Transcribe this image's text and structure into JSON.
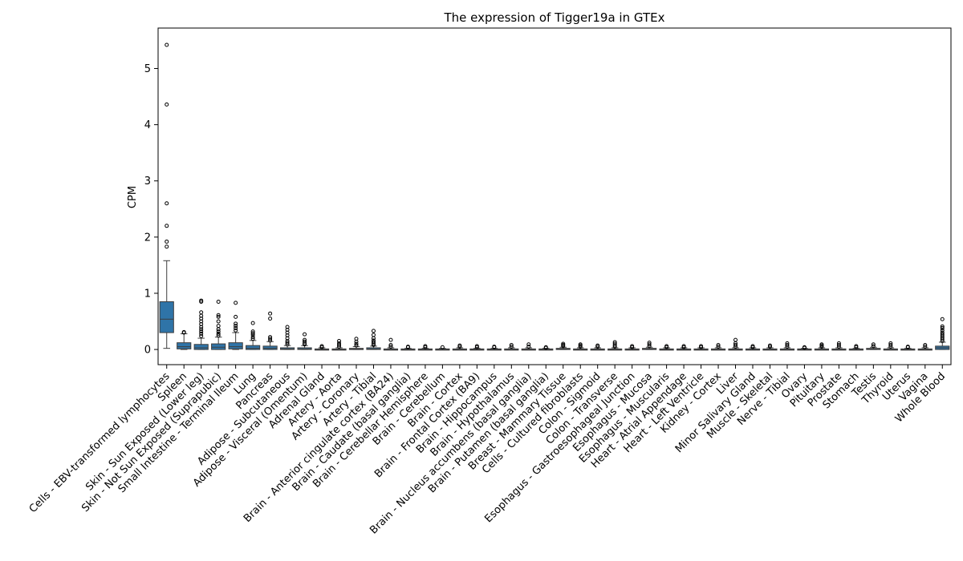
{
  "chart_data": {
    "type": "box",
    "title": "The expression of Tigger19a in GTEx",
    "xlabel": "",
    "ylabel": "CPM",
    "ylim": [
      -0.27,
      5.72
    ],
    "yticks": [
      0,
      1,
      2,
      3,
      4,
      5
    ],
    "box_color": "#2f74a8",
    "grid": false,
    "categories": [
      "Cells - EBV-transformed lymphocytes",
      "Spleen",
      "Skin - Sun Exposed (Lower leg)",
      "Skin - Not Sun Exposed (Suprapubic)",
      "Small Intestine - Terminal Ileum",
      "Lung",
      "Pancreas",
      "Adipose - Subcutaneous",
      "Adipose - Visceral (Omentum)",
      "Adrenal Gland",
      "Artery - Aorta",
      "Artery - Coronary",
      "Artery - Tibial",
      "Brain - Anterior cingulate cortex (BA24)",
      "Brain - Caudate (basal ganglia)",
      "Brain - Cerebellar Hemisphere",
      "Brain - Cerebellum",
      "Brain - Cortex",
      "Brain - Frontal Cortex (BA9)",
      "Brain - Hippocampus",
      "Brain - Hypothalamus",
      "Brain - Nucleus accumbens (basal ganglia)",
      "Brain - Putamen (basal ganglia)",
      "Breast - Mammary Tissue",
      "Cells - Cultured fibroblasts",
      "Colon - Sigmoid",
      "Colon - Transverse",
      "Esophagus - Gastroesophageal Junction",
      "Esophagus - Mucosa",
      "Esophagus - Muscularis",
      "Heart - Atrial Appendage",
      "Heart - Left Ventricle",
      "Kidney - Cortex",
      "Liver",
      "Minor Salivary Gland",
      "Muscle - Skeletal",
      "Nerve - Tibial",
      "Ovary",
      "Pituitary",
      "Prostate",
      "Stomach",
      "Testis",
      "Thyroid",
      "Uterus",
      "Vagina",
      "Whole Blood"
    ],
    "boxes": [
      {
        "whislo": 0.02,
        "q1": 0.3,
        "med": 0.54,
        "q3": 0.85,
        "whishi": 1.58,
        "fliers": [
          1.83,
          1.92,
          2.2,
          2.6,
          4.36,
          5.42
        ]
      },
      {
        "whislo": 0.0,
        "q1": 0.01,
        "med": 0.05,
        "q3": 0.12,
        "whishi": 0.28,
        "fliers": [
          0.31,
          0.3
        ]
      },
      {
        "whislo": 0.0,
        "q1": 0.0,
        "med": 0.03,
        "q3": 0.09,
        "whishi": 0.2,
        "fliers": [
          0.24,
          0.28,
          0.32,
          0.36,
          0.4,
          0.45,
          0.5,
          0.55,
          0.6,
          0.66,
          0.85,
          0.87
        ]
      },
      {
        "whislo": 0.0,
        "q1": 0.0,
        "med": 0.04,
        "q3": 0.1,
        "whishi": 0.22,
        "fliers": [
          0.25,
          0.28,
          0.32,
          0.36,
          0.42,
          0.5,
          0.58,
          0.61,
          0.85
        ]
      },
      {
        "whislo": 0.0,
        "q1": 0.01,
        "med": 0.05,
        "q3": 0.12,
        "whishi": 0.3,
        "fliers": [
          0.34,
          0.38,
          0.42,
          0.46,
          0.58,
          0.83
        ]
      },
      {
        "whislo": 0.0,
        "q1": 0.0,
        "med": 0.02,
        "q3": 0.07,
        "whishi": 0.16,
        "fliers": [
          0.19,
          0.22,
          0.26,
          0.29,
          0.32,
          0.47
        ]
      },
      {
        "whislo": 0.0,
        "q1": 0.0,
        "med": 0.02,
        "q3": 0.06,
        "whishi": 0.14,
        "fliers": [
          0.16,
          0.19,
          0.22,
          0.55,
          0.64
        ]
      },
      {
        "whislo": 0.0,
        "q1": 0.0,
        "med": 0.01,
        "q3": 0.03,
        "whishi": 0.07,
        "fliers": [
          0.09,
          0.12,
          0.15,
          0.2,
          0.25,
          0.3,
          0.35,
          0.4
        ]
      },
      {
        "whislo": 0.0,
        "q1": 0.0,
        "med": 0.01,
        "q3": 0.03,
        "whishi": 0.07,
        "fliers": [
          0.09,
          0.11,
          0.14,
          0.17,
          0.27
        ]
      },
      {
        "whislo": 0.0,
        "q1": 0.0,
        "med": 0.0,
        "q3": 0.01,
        "whishi": 0.03,
        "fliers": [
          0.04,
          0.06
        ]
      },
      {
        "whislo": 0.0,
        "q1": 0.0,
        "med": 0.0,
        "q3": 0.01,
        "whishi": 0.03,
        "fliers": [
          0.05,
          0.08,
          0.11,
          0.15
        ]
      },
      {
        "whislo": 0.0,
        "q1": 0.0,
        "med": 0.01,
        "q3": 0.02,
        "whishi": 0.05,
        "fliers": [
          0.07,
          0.1,
          0.14,
          0.19
        ]
      },
      {
        "whislo": 0.0,
        "q1": 0.0,
        "med": 0.01,
        "q3": 0.03,
        "whishi": 0.06,
        "fliers": [
          0.08,
          0.1,
          0.13,
          0.16,
          0.2,
          0.26,
          0.33
        ]
      },
      {
        "whislo": 0.0,
        "q1": 0.0,
        "med": 0.0,
        "q3": 0.01,
        "whishi": 0.03,
        "fliers": [
          0.05,
          0.08,
          0.17
        ]
      },
      {
        "whislo": 0.0,
        "q1": 0.0,
        "med": 0.0,
        "q3": 0.01,
        "whishi": 0.02,
        "fliers": [
          0.04,
          0.05
        ]
      },
      {
        "whislo": 0.0,
        "q1": 0.0,
        "med": 0.0,
        "q3": 0.01,
        "whishi": 0.02,
        "fliers": [
          0.04,
          0.06
        ]
      },
      {
        "whislo": 0.0,
        "q1": 0.0,
        "med": 0.0,
        "q3": 0.01,
        "whishi": 0.02,
        "fliers": [
          0.04
        ]
      },
      {
        "whislo": 0.0,
        "q1": 0.0,
        "med": 0.0,
        "q3": 0.01,
        "whishi": 0.03,
        "fliers": [
          0.05,
          0.07
        ]
      },
      {
        "whislo": 0.0,
        "q1": 0.0,
        "med": 0.0,
        "q3": 0.01,
        "whishi": 0.02,
        "fliers": [
          0.04,
          0.06
        ]
      },
      {
        "whislo": 0.0,
        "q1": 0.0,
        "med": 0.0,
        "q3": 0.01,
        "whishi": 0.02,
        "fliers": [
          0.04,
          0.05
        ]
      },
      {
        "whislo": 0.0,
        "q1": 0.0,
        "med": 0.0,
        "q3": 0.01,
        "whishi": 0.03,
        "fliers": [
          0.05,
          0.08
        ]
      },
      {
        "whislo": 0.0,
        "q1": 0.0,
        "med": 0.0,
        "q3": 0.01,
        "whishi": 0.03,
        "fliers": [
          0.05,
          0.09
        ]
      },
      {
        "whislo": 0.0,
        "q1": 0.0,
        "med": 0.0,
        "q3": 0.01,
        "whishi": 0.02,
        "fliers": [
          0.03,
          0.04
        ]
      },
      {
        "whislo": 0.0,
        "q1": 0.0,
        "med": 0.01,
        "q3": 0.02,
        "whishi": 0.04,
        "fliers": [
          0.06,
          0.08,
          0.1
        ]
      },
      {
        "whislo": 0.0,
        "q1": 0.0,
        "med": 0.0,
        "q3": 0.01,
        "whishi": 0.03,
        "fliers": [
          0.05,
          0.07,
          0.09
        ]
      },
      {
        "whislo": 0.0,
        "q1": 0.0,
        "med": 0.0,
        "q3": 0.01,
        "whishi": 0.03,
        "fliers": [
          0.05,
          0.07
        ]
      },
      {
        "whislo": 0.0,
        "q1": 0.0,
        "med": 0.0,
        "q3": 0.01,
        "whishi": 0.03,
        "fliers": [
          0.05,
          0.07,
          0.1,
          0.13
        ]
      },
      {
        "whislo": 0.0,
        "q1": 0.0,
        "med": 0.0,
        "q3": 0.01,
        "whishi": 0.03,
        "fliers": [
          0.04,
          0.06
        ]
      },
      {
        "whislo": 0.0,
        "q1": 0.0,
        "med": 0.01,
        "q3": 0.02,
        "whishi": 0.04,
        "fliers": [
          0.06,
          0.09,
          0.12
        ]
      },
      {
        "whislo": 0.0,
        "q1": 0.0,
        "med": 0.0,
        "q3": 0.01,
        "whishi": 0.03,
        "fliers": [
          0.04,
          0.06
        ]
      },
      {
        "whislo": 0.0,
        "q1": 0.0,
        "med": 0.0,
        "q3": 0.01,
        "whishi": 0.03,
        "fliers": [
          0.04,
          0.06
        ]
      },
      {
        "whislo": 0.0,
        "q1": 0.0,
        "med": 0.0,
        "q3": 0.01,
        "whishi": 0.03,
        "fliers": [
          0.04,
          0.06
        ]
      },
      {
        "whislo": 0.0,
        "q1": 0.0,
        "med": 0.0,
        "q3": 0.01,
        "whishi": 0.03,
        "fliers": [
          0.05,
          0.08
        ]
      },
      {
        "whislo": 0.0,
        "q1": 0.0,
        "med": 0.0,
        "q3": 0.01,
        "whishi": 0.03,
        "fliers": [
          0.05,
          0.08,
          0.11,
          0.17
        ]
      },
      {
        "whislo": 0.0,
        "q1": 0.0,
        "med": 0.0,
        "q3": 0.01,
        "whishi": 0.03,
        "fliers": [
          0.04,
          0.06
        ]
      },
      {
        "whislo": 0.0,
        "q1": 0.0,
        "med": 0.0,
        "q3": 0.01,
        "whishi": 0.03,
        "fliers": [
          0.05,
          0.07
        ]
      },
      {
        "whislo": 0.0,
        "q1": 0.0,
        "med": 0.0,
        "q3": 0.01,
        "whishi": 0.03,
        "fliers": [
          0.05,
          0.08,
          0.11
        ]
      },
      {
        "whislo": 0.0,
        "q1": 0.0,
        "med": 0.0,
        "q3": 0.01,
        "whishi": 0.02,
        "fliers": [
          0.03,
          0.04
        ]
      },
      {
        "whislo": 0.0,
        "q1": 0.0,
        "med": 0.0,
        "q3": 0.01,
        "whishi": 0.03,
        "fliers": [
          0.05,
          0.07,
          0.09
        ]
      },
      {
        "whislo": 0.0,
        "q1": 0.0,
        "med": 0.0,
        "q3": 0.01,
        "whishi": 0.03,
        "fliers": [
          0.05,
          0.08,
          0.11
        ]
      },
      {
        "whislo": 0.0,
        "q1": 0.0,
        "med": 0.0,
        "q3": 0.01,
        "whishi": 0.02,
        "fliers": [
          0.04,
          0.06
        ]
      },
      {
        "whislo": 0.0,
        "q1": 0.0,
        "med": 0.01,
        "q3": 0.02,
        "whishi": 0.04,
        "fliers": [
          0.06,
          0.09
        ]
      },
      {
        "whislo": 0.0,
        "q1": 0.0,
        "med": 0.0,
        "q3": 0.01,
        "whishi": 0.03,
        "fliers": [
          0.05,
          0.08,
          0.11
        ]
      },
      {
        "whislo": 0.0,
        "q1": 0.0,
        "med": 0.0,
        "q3": 0.01,
        "whishi": 0.02,
        "fliers": [
          0.04,
          0.05
        ]
      },
      {
        "whislo": 0.0,
        "q1": 0.0,
        "med": 0.0,
        "q3": 0.01,
        "whishi": 0.03,
        "fliers": [
          0.05,
          0.08
        ]
      },
      {
        "whislo": 0.0,
        "q1": 0.0,
        "med": 0.03,
        "q3": 0.06,
        "whishi": 0.13,
        "fliers": [
          0.15,
          0.18,
          0.21,
          0.24,
          0.27,
          0.3,
          0.34,
          0.38,
          0.41,
          0.54
        ]
      }
    ]
  }
}
